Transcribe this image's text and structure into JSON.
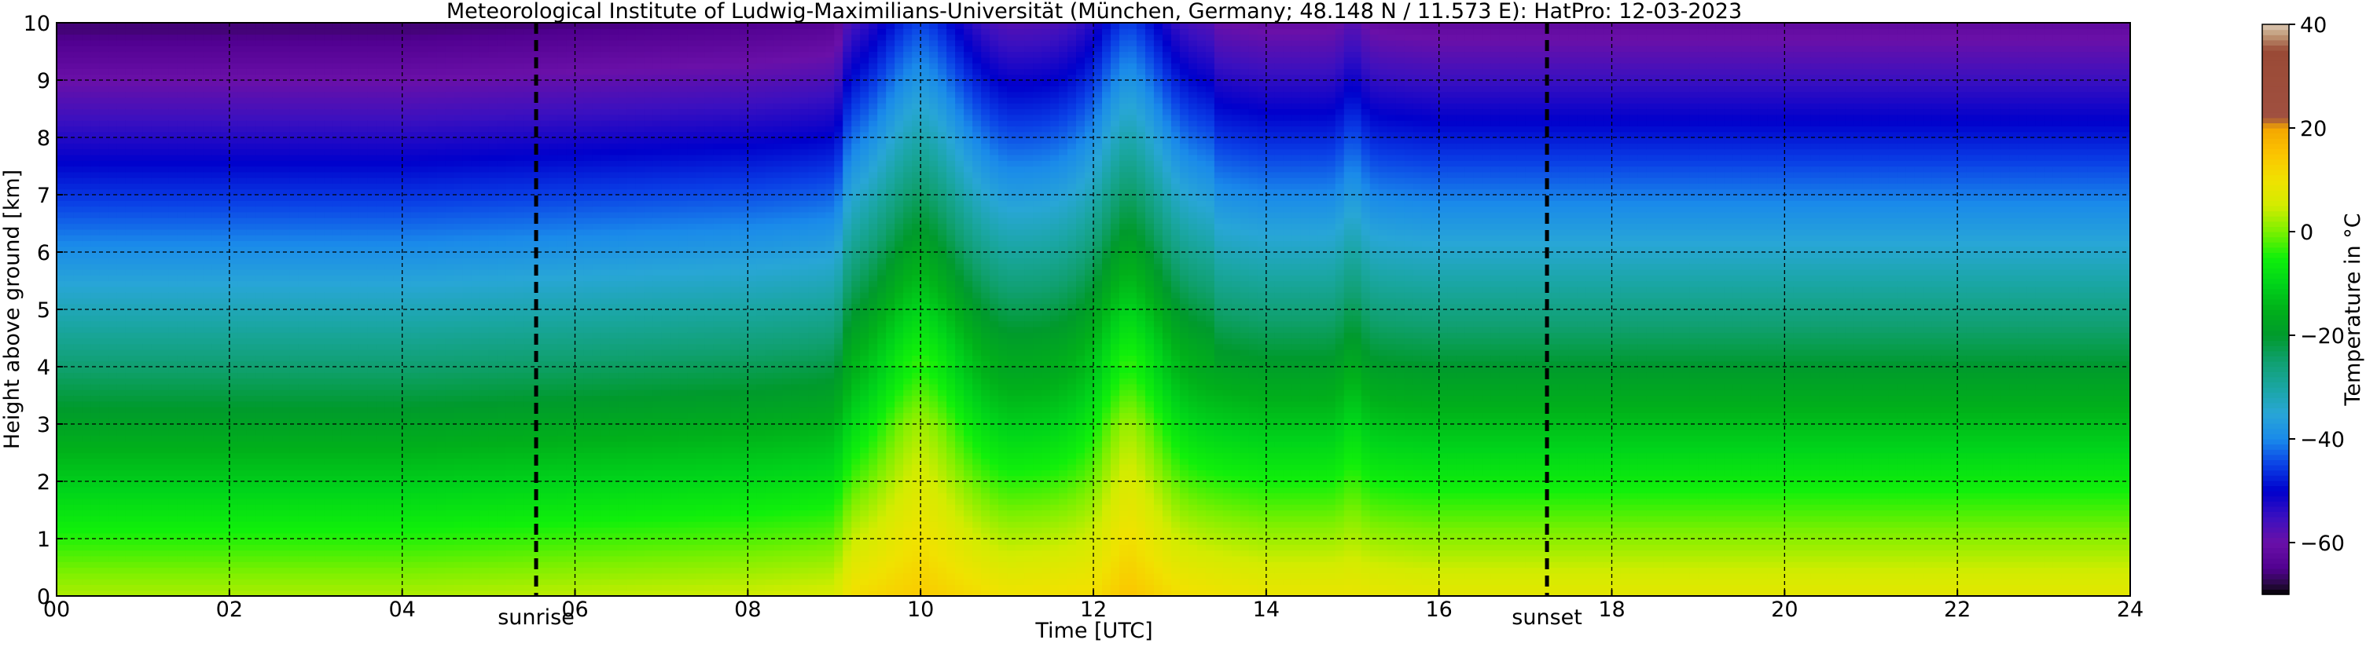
{
  "chart_data": {
    "type": "heatmap",
    "title": "Meteorological Institute of Ludwig-Maximilians-Universität (München, Germany; 48.148 N / 11.573 E):    HatPro: 12-03-2023",
    "xlabel": "Time [UTC]",
    "ylabel": "Height above ground [km]",
    "xlim": [
      0,
      24
    ],
    "ylim": [
      0,
      10
    ],
    "x_ticks": [
      0,
      2,
      4,
      6,
      8,
      10,
      12,
      14,
      16,
      18,
      20,
      22,
      24
    ],
    "x_tick_labels": [
      "00",
      "02",
      "04",
      "06",
      "08",
      "10",
      "12",
      "14",
      "16",
      "18",
      "20",
      "22",
      "24"
    ],
    "y_ticks": [
      0,
      1,
      2,
      3,
      4,
      5,
      6,
      7,
      8,
      9,
      10
    ],
    "y_tick_labels": [
      "0",
      "1",
      "2",
      "3",
      "4",
      "5",
      "6",
      "7",
      "8",
      "9",
      "10"
    ],
    "grid": true,
    "colorbar": {
      "label": "Temperature in °C",
      "range": [
        -70,
        40
      ],
      "ticks": [
        40,
        20,
        0,
        -20,
        -40,
        -60
      ],
      "tick_labels": [
        "40",
        "20",
        "0",
        "−20",
        "−40",
        "−60"
      ]
    },
    "annotations": [
      {
        "text": "sunrise",
        "x": 5.55
      },
      {
        "text": "sunset",
        "x": 17.25
      }
    ],
    "surface_temperature_c": [
      {
        "x": 0,
        "y": 3
      },
      {
        "x": 2,
        "y": 3
      },
      {
        "x": 4,
        "y": 3
      },
      {
        "x": 6,
        "y": 4
      },
      {
        "x": 8,
        "y": 5
      },
      {
        "x": 9,
        "y": 6
      },
      {
        "x": 9.2,
        "y": 11
      },
      {
        "x": 10,
        "y": 14
      },
      {
        "x": 11,
        "y": 10
      },
      {
        "x": 12,
        "y": 11
      },
      {
        "x": 12.4,
        "y": 15
      },
      {
        "x": 13,
        "y": 11
      },
      {
        "x": 14,
        "y": 9
      },
      {
        "x": 15,
        "y": 9
      },
      {
        "x": 16,
        "y": 8
      },
      {
        "x": 18,
        "y": 8
      },
      {
        "x": 20,
        "y": 8
      },
      {
        "x": 22,
        "y": 8
      },
      {
        "x": 24,
        "y": 8
      }
    ],
    "lapse_rate_c_per_km": 7.0
  }
}
